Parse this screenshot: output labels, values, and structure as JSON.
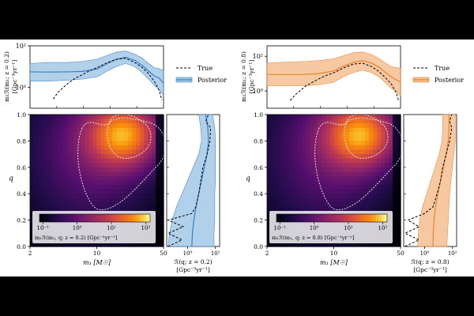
{
  "chart_data": [
    {
      "id": "left",
      "type": "line",
      "panel": "marginal-m1",
      "ylabel_line1": "m₁ℛ(m₁; z = 0.2)",
      "ylabel_line2": "[Gpc⁻³yr⁻¹]",
      "yticks": [
        "10²",
        "10⁰"
      ],
      "ylim_log10": [
        -1.0,
        2.0
      ],
      "xlim": [
        2,
        50
      ],
      "legend": [
        "True",
        "Posterior"
      ],
      "color": "#3a7fc0",
      "fill": "#a9cbe8",
      "series": [
        {
          "name": "Posterior",
          "x": [
            2,
            3,
            5,
            7,
            10,
            13,
            16,
            20,
            25,
            30,
            35,
            40,
            45,
            50
          ],
          "y_log10": [
            0.75,
            0.74,
            0.75,
            0.77,
            0.88,
            1.15,
            1.35,
            1.45,
            1.3,
            1.05,
            0.78,
            0.55,
            0.45,
            0.2
          ]
        },
        {
          "name": "Posterior upper",
          "x": [
            2,
            3,
            5,
            7,
            10,
            13,
            16,
            20,
            25,
            30,
            35,
            40,
            45,
            50
          ],
          "y_log10": [
            1.15,
            1.2,
            1.2,
            1.25,
            1.35,
            1.55,
            1.7,
            1.75,
            1.6,
            1.4,
            1.15,
            0.95,
            0.9,
            0.8
          ]
        },
        {
          "name": "Posterior lower",
          "x": [
            2,
            3,
            5,
            7,
            10,
            13,
            16,
            20,
            25,
            30,
            35,
            40,
            45,
            50
          ],
          "y_log10": [
            0.3,
            0.3,
            0.35,
            0.4,
            0.5,
            0.8,
            1.0,
            1.15,
            1.0,
            0.7,
            0.4,
            0.1,
            -0.1,
            -0.4
          ]
        },
        {
          "name": "True",
          "x": [
            3.5,
            4,
            5,
            6,
            7,
            8,
            10,
            13,
            16,
            20,
            25,
            30,
            35,
            40,
            45,
            48
          ],
          "y_log10": [
            -0.55,
            -0.2,
            0.2,
            0.45,
            0.6,
            0.75,
            0.95,
            1.2,
            1.35,
            1.4,
            1.2,
            0.95,
            0.65,
            0.3,
            -0.15,
            -0.6
          ]
        }
      ],
      "heatmap": {
        "xlabel": "m₁ [M☉]",
        "ylabel": "q",
        "xticks": [
          "2",
          "10",
          "50"
        ],
        "yticks": [
          "0.0",
          "0.2",
          "0.4",
          "0.6",
          "0.8",
          "1.0"
        ],
        "colorbar_ticks": [
          "10⁻¹",
          "10⁰",
          "10¹",
          "10²"
        ],
        "colorbar_label": "m₁ℛ(m₁, q; z = 0.2) [Gpc⁻³yr⁻¹]",
        "peak": {
          "m1": 20,
          "q": 0.85
        }
      },
      "q_marginal": {
        "xlabel_line1": "ℛ(q; z = 0.2)",
        "xlabel_line2": "[Gpc⁻³yr⁻¹]",
        "xticks": [
          "10⁰",
          "10²"
        ],
        "posterior": {
          "q": [
            0,
            0.1,
            0.2,
            0.3,
            0.4,
            0.5,
            0.6,
            0.7,
            0.8,
            0.9,
            1.0
          ],
          "x_log10": [
            0.3,
            0.35,
            0.45,
            0.6,
            0.8,
            1.0,
            1.2,
            1.4,
            1.5,
            1.45,
            1.3
          ]
        },
        "upper": {
          "q": [
            0,
            0.1,
            0.2,
            0.3,
            0.4,
            0.5,
            0.6,
            0.7,
            0.8,
            0.9,
            1.0
          ],
          "x_log10": [
            1.9,
            1.9,
            1.95,
            1.95,
            1.95,
            2.0,
            2.0,
            2.0,
            2.0,
            1.95,
            1.8
          ]
        },
        "lower": {
          "q": [
            0,
            0.1,
            0.2,
            0.3,
            0.4,
            0.5,
            0.6,
            0.7,
            0.8,
            0.9,
            1.0
          ],
          "x_log10": [
            -1.4,
            -1.3,
            -1.1,
            -0.8,
            -0.4,
            0.0,
            0.4,
            0.8,
            1.0,
            0.95,
            0.8
          ]
        },
        "true": {
          "q": [
            0,
            0.05,
            0.1,
            0.15,
            0.2,
            0.25,
            0.3,
            0.4,
            0.5,
            0.6,
            0.7,
            0.8,
            0.9,
            0.95,
            1.0
          ],
          "x_log10": [
            -1.4,
            -0.4,
            -1.4,
            -0.3,
            -1.4,
            0.3,
            0.6,
            0.8,
            0.95,
            1.1,
            1.4,
            1.6,
            1.65,
            1.3,
            1.5
          ]
        }
      }
    },
    {
      "id": "right",
      "type": "line",
      "panel": "marginal-m1",
      "ylabel_line1": "m₁ℛ(m₁; z = 0.8)",
      "ylabel_line2": "[Gpc⁻³yr⁻¹]",
      "yticks": [
        "10²",
        "10⁰"
      ],
      "ylim_log10": [
        -1.0,
        2.6
      ],
      "xlim": [
        2,
        50
      ],
      "legend": [
        "True",
        "Posterior"
      ],
      "color": "#e8832a",
      "fill": "#f7c49a",
      "series": [
        {
          "name": "Posterior",
          "x": [
            2,
            3,
            5,
            7,
            10,
            13,
            16,
            20,
            25,
            30,
            35,
            40,
            45,
            50
          ],
          "y_log10": [
            0.95,
            0.95,
            0.95,
            1.0,
            1.15,
            1.45,
            1.65,
            1.75,
            1.6,
            1.35,
            1.05,
            0.8,
            0.65,
            0.5
          ]
        },
        {
          "name": "Posterior upper",
          "x": [
            2,
            3,
            5,
            7,
            10,
            13,
            16,
            20,
            25,
            30,
            35,
            40,
            45,
            50
          ],
          "y_log10": [
            1.6,
            1.65,
            1.7,
            1.75,
            1.85,
            2.05,
            2.2,
            2.25,
            2.1,
            1.85,
            1.6,
            1.4,
            1.35,
            1.3
          ]
        },
        {
          "name": "Posterior lower",
          "x": [
            2,
            3,
            5,
            7,
            10,
            13,
            16,
            20,
            25,
            30,
            35,
            40,
            45,
            50
          ],
          "y_log10": [
            0.3,
            0.3,
            0.3,
            0.35,
            0.5,
            0.85,
            1.05,
            1.2,
            1.05,
            0.8,
            0.45,
            0.15,
            -0.05,
            -0.3
          ]
        },
        {
          "name": "True",
          "x": [
            3.5,
            4,
            5,
            6,
            7,
            8,
            10,
            13,
            16,
            20,
            25,
            30,
            35,
            40,
            45,
            48
          ],
          "y_log10": [
            -0.55,
            -0.2,
            0.25,
            0.5,
            0.7,
            0.85,
            1.05,
            1.35,
            1.55,
            1.6,
            1.4,
            1.1,
            0.75,
            0.4,
            -0.1,
            -0.6
          ]
        }
      ],
      "heatmap": {
        "xlabel": "m₁ [M☉]",
        "ylabel": "q",
        "xticks": [
          "2",
          "10",
          "50"
        ],
        "yticks": [
          "0.0",
          "0.2",
          "0.4",
          "0.6",
          "0.8",
          "1.0"
        ],
        "colorbar_ticks": [
          "10⁻¹",
          "10⁰",
          "10¹",
          "10²"
        ],
        "colorbar_label": "m₁ℛ(m₁, q; z = 0.8) [Gpc⁻³yr⁻¹]",
        "peak": {
          "m1": 20,
          "q": 0.85
        }
      },
      "q_marginal": {
        "xlabel_line1": "ℛ(q; z = 0.8)",
        "xlabel_line2": "[Gpc⁻³yr⁻¹]",
        "xticks": [
          "10⁰",
          "10²"
        ],
        "posterior": {
          "q": [
            0,
            0.1,
            0.2,
            0.3,
            0.4,
            0.5,
            0.6,
            0.7,
            0.8,
            0.9,
            1.0
          ],
          "x_log10": [
            0.6,
            0.62,
            0.68,
            0.78,
            0.95,
            1.15,
            1.35,
            1.55,
            1.7,
            1.75,
            1.75
          ]
        },
        "upper": {
          "q": [
            0,
            0.1,
            0.2,
            0.3,
            0.4,
            0.5,
            0.6,
            0.7,
            0.8,
            0.9,
            1.0
          ],
          "x_log10": [
            1.6,
            1.65,
            1.7,
            1.75,
            1.8,
            1.9,
            2.0,
            2.1,
            2.2,
            2.2,
            2.2
          ]
        },
        "lower": {
          "q": [
            0,
            0.1,
            0.2,
            0.3,
            0.4,
            0.5,
            0.6,
            0.7,
            0.8,
            0.9,
            1.0
          ],
          "x_log10": [
            -0.5,
            -0.45,
            -0.35,
            -0.15,
            0.15,
            0.45,
            0.75,
            1.05,
            1.25,
            1.3,
            1.3
          ]
        },
        "true": {
          "q": [
            0,
            0.05,
            0.1,
            0.15,
            0.2,
            0.25,
            0.3,
            0.4,
            0.5,
            0.6,
            0.7,
            0.8,
            0.9,
            0.95,
            1.0
          ],
          "x_log10": [
            -1.4,
            -0.4,
            -1.4,
            -0.4,
            -1.2,
            0.0,
            0.6,
            0.9,
            1.15,
            1.3,
            1.55,
            1.8,
            1.95,
            1.8,
            1.95
          ]
        }
      }
    }
  ]
}
